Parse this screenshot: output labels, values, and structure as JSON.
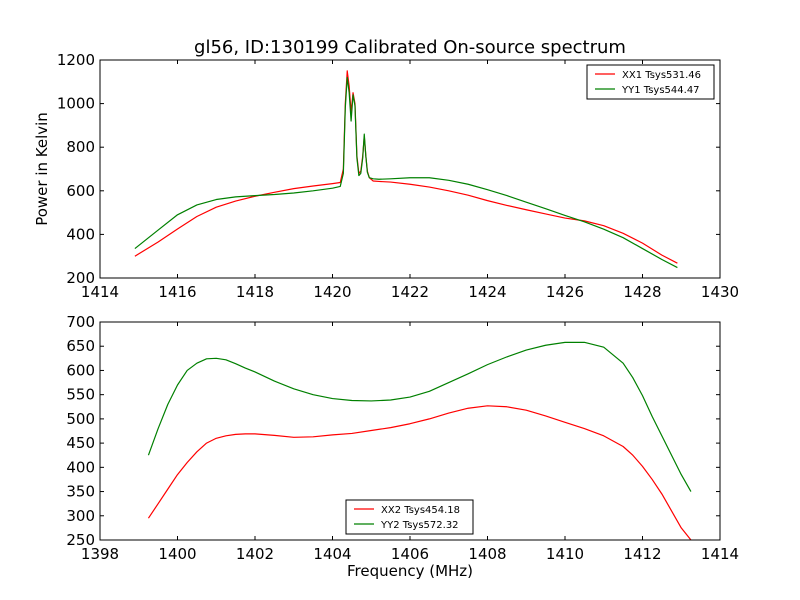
{
  "figure_title": "gl56, ID:130199 Calibrated On-source spectrum",
  "chart_data": [
    {
      "type": "line",
      "title": "gl56, ID:130199 Calibrated On-source spectrum",
      "xlabel": "",
      "ylabel": "Power in Kelvin",
      "xlim": [
        1414,
        1430
      ],
      "ylim": [
        200,
        1200
      ],
      "xticks": [
        1414,
        1416,
        1418,
        1420,
        1422,
        1424,
        1426,
        1428,
        1430
      ],
      "yticks": [
        200,
        400,
        600,
        800,
        1000,
        1200
      ],
      "grid": false,
      "legend_position": "top-right",
      "series": [
        {
          "name": "XX1 Tsys531.46",
          "color": "#ff0000",
          "x": [
            1414.9,
            1415.5,
            1416.0,
            1416.5,
            1417.0,
            1417.5,
            1418.0,
            1418.5,
            1419.0,
            1419.5,
            1420.0,
            1420.2,
            1420.28,
            1420.33,
            1420.38,
            1420.43,
            1420.48,
            1420.53,
            1420.58,
            1420.63,
            1420.68,
            1420.73,
            1420.78,
            1420.82,
            1420.86,
            1420.9,
            1420.95,
            1421.05,
            1421.2,
            1421.5,
            1422.0,
            1422.5,
            1423.0,
            1423.5,
            1424.0,
            1424.5,
            1425.0,
            1425.5,
            1426.0,
            1426.5,
            1427.0,
            1427.5,
            1428.0,
            1428.5,
            1428.9
          ],
          "values": [
            300,
            365,
            425,
            482,
            525,
            553,
            575,
            593,
            610,
            622,
            633,
            638,
            700,
            1000,
            1150,
            1080,
            960,
            1050,
            1000,
            760,
            680,
            690,
            760,
            850,
            760,
            690,
            660,
            645,
            643,
            640,
            630,
            617,
            600,
            580,
            555,
            533,
            513,
            494,
            475,
            462,
            440,
            405,
            360,
            305,
            268
          ]
        },
        {
          "name": "YY1 Tsys544.47",
          "color": "#008000",
          "x": [
            1414.9,
            1415.5,
            1416.0,
            1416.5,
            1417.0,
            1417.5,
            1418.0,
            1418.5,
            1419.0,
            1419.5,
            1420.0,
            1420.2,
            1420.28,
            1420.33,
            1420.38,
            1420.43,
            1420.48,
            1420.53,
            1420.58,
            1420.63,
            1420.68,
            1420.73,
            1420.78,
            1420.82,
            1420.86,
            1420.9,
            1420.95,
            1421.05,
            1421.2,
            1421.5,
            1422.0,
            1422.5,
            1423.0,
            1423.5,
            1424.0,
            1424.5,
            1425.0,
            1425.5,
            1426.0,
            1426.5,
            1427.0,
            1427.5,
            1428.0,
            1428.5,
            1428.9
          ],
          "values": [
            335,
            420,
            490,
            535,
            560,
            572,
            578,
            583,
            590,
            600,
            612,
            620,
            680,
            980,
            1120,
            1050,
            920,
            1040,
            990,
            750,
            670,
            680,
            750,
            860,
            760,
            685,
            660,
            655,
            653,
            655,
            660,
            660,
            648,
            630,
            605,
            578,
            548,
            518,
            487,
            458,
            424,
            385,
            335,
            285,
            248
          ]
        }
      ]
    },
    {
      "type": "line",
      "title": "",
      "xlabel": "Frequency (MHz)",
      "ylabel": "",
      "xlim": [
        1398,
        1414
      ],
      "ylim": [
        250,
        700
      ],
      "xticks": [
        1398,
        1400,
        1402,
        1404,
        1406,
        1408,
        1410,
        1412,
        1414
      ],
      "yticks": [
        250,
        300,
        350,
        400,
        450,
        500,
        550,
        600,
        650,
        700
      ],
      "grid": false,
      "legend_position": "lower-center",
      "series": [
        {
          "name": "XX2 Tsys454.18",
          "color": "#ff0000",
          "x": [
            1399.25,
            1399.5,
            1399.75,
            1400.0,
            1400.25,
            1400.5,
            1400.75,
            1401.0,
            1401.25,
            1401.5,
            1401.75,
            1402.0,
            1402.5,
            1403.0,
            1403.5,
            1404.0,
            1404.5,
            1405.0,
            1405.5,
            1406.0,
            1406.5,
            1407.0,
            1407.5,
            1408.0,
            1408.5,
            1409.0,
            1409.5,
            1410.0,
            1410.5,
            1411.0,
            1411.5,
            1411.75,
            1412.0,
            1412.25,
            1412.5,
            1412.75,
            1413.0,
            1413.25
          ],
          "values": [
            295,
            325,
            355,
            385,
            410,
            432,
            450,
            460,
            465,
            468,
            469,
            469,
            466,
            462,
            463,
            467,
            470,
            476,
            482,
            490,
            500,
            512,
            522,
            527,
            525,
            518,
            506,
            493,
            480,
            465,
            443,
            425,
            402,
            375,
            345,
            310,
            275,
            250
          ]
        },
        {
          "name": "YY2 Tsys572.32",
          "color": "#008000",
          "x": [
            1399.25,
            1399.5,
            1399.75,
            1400.0,
            1400.25,
            1400.5,
            1400.75,
            1401.0,
            1401.25,
            1401.5,
            1401.75,
            1402.0,
            1402.5,
            1403.0,
            1403.5,
            1404.0,
            1404.5,
            1405.0,
            1405.5,
            1406.0,
            1406.5,
            1407.0,
            1407.5,
            1408.0,
            1408.5,
            1409.0,
            1409.5,
            1410.0,
            1410.5,
            1411.0,
            1411.5,
            1411.75,
            1412.0,
            1412.25,
            1412.5,
            1412.75,
            1413.0,
            1413.25
          ],
          "values": [
            425,
            480,
            530,
            570,
            600,
            615,
            624,
            625,
            622,
            614,
            605,
            597,
            578,
            562,
            550,
            542,
            538,
            537,
            539,
            545,
            557,
            575,
            593,
            612,
            628,
            642,
            652,
            658,
            658,
            648,
            615,
            585,
            548,
            505,
            465,
            425,
            385,
            350
          ]
        }
      ]
    }
  ]
}
